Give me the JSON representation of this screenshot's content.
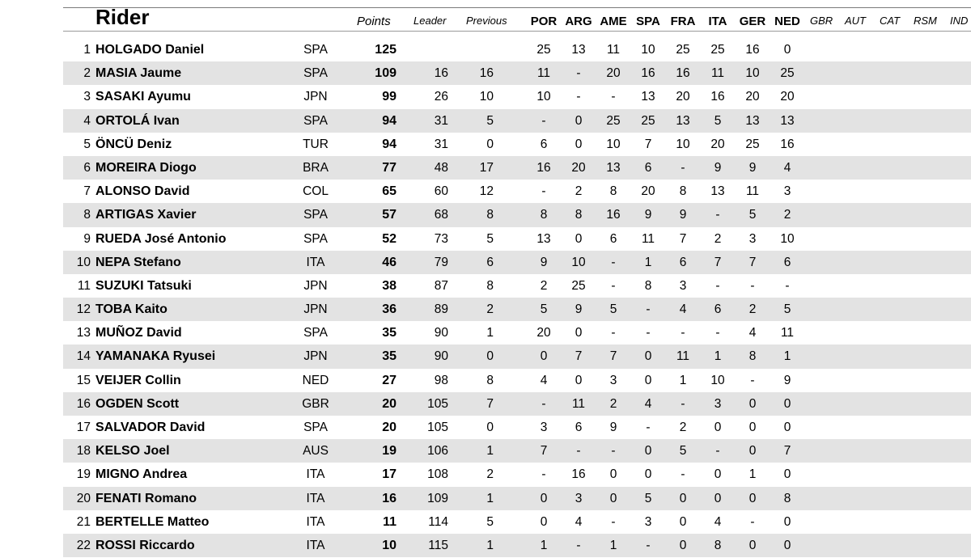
{
  "header": {
    "rider": "Rider",
    "points": "Points",
    "leader": "Leader",
    "previous": "Previous",
    "races": [
      "POR",
      "ARG",
      "AME",
      "SPA",
      "FRA",
      "ITA",
      "GER",
      "NED"
    ],
    "future_races": [
      "GBR",
      "AUT",
      "CAT",
      "RSM",
      "IND"
    ]
  },
  "rows": [
    {
      "pos": "1",
      "name": "HOLGADO Daniel",
      "nat": "SPA",
      "points": "125",
      "leader": "",
      "previous": "",
      "results": [
        "25",
        "13",
        "11",
        "10",
        "25",
        "25",
        "16",
        "0"
      ]
    },
    {
      "pos": "2",
      "name": "MASIA Jaume",
      "nat": "SPA",
      "points": "109",
      "leader": "16",
      "previous": "16",
      "results": [
        "11",
        "-",
        "20",
        "16",
        "16",
        "11",
        "10",
        "25"
      ]
    },
    {
      "pos": "3",
      "name": "SASAKI Ayumu",
      "nat": "JPN",
      "points": "99",
      "leader": "26",
      "previous": "10",
      "results": [
        "10",
        "-",
        "-",
        "13",
        "20",
        "16",
        "20",
        "20"
      ]
    },
    {
      "pos": "4",
      "name": "ORTOLÁ Ivan",
      "nat": "SPA",
      "points": "94",
      "leader": "31",
      "previous": "5",
      "results": [
        "-",
        "0",
        "25",
        "25",
        "13",
        "5",
        "13",
        "13"
      ]
    },
    {
      "pos": "5",
      "name": "ÖNCÜ Deniz",
      "nat": "TUR",
      "points": "94",
      "leader": "31",
      "previous": "0",
      "results": [
        "6",
        "0",
        "10",
        "7",
        "10",
        "20",
        "25",
        "16"
      ]
    },
    {
      "pos": "6",
      "name": "MOREIRA Diogo",
      "nat": "BRA",
      "points": "77",
      "leader": "48",
      "previous": "17",
      "results": [
        "16",
        "20",
        "13",
        "6",
        "-",
        "9",
        "9",
        "4"
      ]
    },
    {
      "pos": "7",
      "name": "ALONSO David",
      "nat": "COL",
      "points": "65",
      "leader": "60",
      "previous": "12",
      "results": [
        "-",
        "2",
        "8",
        "20",
        "8",
        "13",
        "11",
        "3"
      ]
    },
    {
      "pos": "8",
      "name": "ARTIGAS Xavier",
      "nat": "SPA",
      "points": "57",
      "leader": "68",
      "previous": "8",
      "results": [
        "8",
        "8",
        "16",
        "9",
        "9",
        "-",
        "5",
        "2"
      ]
    },
    {
      "pos": "9",
      "name": "RUEDA José Antonio",
      "nat": "SPA",
      "points": "52",
      "leader": "73",
      "previous": "5",
      "results": [
        "13",
        "0",
        "6",
        "11",
        "7",
        "2",
        "3",
        "10"
      ]
    },
    {
      "pos": "10",
      "name": "NEPA Stefano",
      "nat": "ITA",
      "points": "46",
      "leader": "79",
      "previous": "6",
      "results": [
        "9",
        "10",
        "-",
        "1",
        "6",
        "7",
        "7",
        "6"
      ]
    },
    {
      "pos": "11",
      "name": "SUZUKI Tatsuki",
      "nat": "JPN",
      "points": "38",
      "leader": "87",
      "previous": "8",
      "results": [
        "2",
        "25",
        "-",
        "8",
        "3",
        "-",
        "-",
        "-"
      ]
    },
    {
      "pos": "12",
      "name": "TOBA Kaito",
      "nat": "JPN",
      "points": "36",
      "leader": "89",
      "previous": "2",
      "results": [
        "5",
        "9",
        "5",
        "-",
        "4",
        "6",
        "2",
        "5"
      ]
    },
    {
      "pos": "13",
      "name": "MUÑOZ David",
      "nat": "SPA",
      "points": "35",
      "leader": "90",
      "previous": "1",
      "results": [
        "20",
        "0",
        "-",
        "-",
        "-",
        "-",
        "4",
        "11"
      ]
    },
    {
      "pos": "14",
      "name": "YAMANAKA Ryusei",
      "nat": "JPN",
      "points": "35",
      "leader": "90",
      "previous": "0",
      "results": [
        "0",
        "7",
        "7",
        "0",
        "11",
        "1",
        "8",
        "1"
      ]
    },
    {
      "pos": "15",
      "name": "VEIJER Collin",
      "nat": "NED",
      "points": "27",
      "leader": "98",
      "previous": "8",
      "results": [
        "4",
        "0",
        "3",
        "0",
        "1",
        "10",
        "-",
        "9"
      ]
    },
    {
      "pos": "16",
      "name": "OGDEN Scott",
      "nat": "GBR",
      "points": "20",
      "leader": "105",
      "previous": "7",
      "results": [
        "-",
        "11",
        "2",
        "4",
        "-",
        "3",
        "0",
        "0"
      ]
    },
    {
      "pos": "17",
      "name": "SALVADOR David",
      "nat": "SPA",
      "points": "20",
      "leader": "105",
      "previous": "0",
      "results": [
        "3",
        "6",
        "9",
        "-",
        "2",
        "0",
        "0",
        "0"
      ]
    },
    {
      "pos": "18",
      "name": "KELSO Joel",
      "nat": "AUS",
      "points": "19",
      "leader": "106",
      "previous": "1",
      "results": [
        "7",
        "-",
        "-",
        "0",
        "5",
        "-",
        "0",
        "7"
      ]
    },
    {
      "pos": "19",
      "name": "MIGNO Andrea",
      "nat": "ITA",
      "points": "17",
      "leader": "108",
      "previous": "2",
      "results": [
        "-",
        "16",
        "0",
        "0",
        "-",
        "0",
        "1",
        "0"
      ]
    },
    {
      "pos": "20",
      "name": "FENATI Romano",
      "nat": "ITA",
      "points": "16",
      "leader": "109",
      "previous": "1",
      "results": [
        "0",
        "3",
        "0",
        "5",
        "0",
        "0",
        "0",
        "8"
      ]
    },
    {
      "pos": "21",
      "name": "BERTELLE Matteo",
      "nat": "ITA",
      "points": "11",
      "leader": "114",
      "previous": "5",
      "results": [
        "0",
        "4",
        "-",
        "3",
        "0",
        "4",
        "-",
        "0"
      ]
    },
    {
      "pos": "22",
      "name": "ROSSI Riccardo",
      "nat": "ITA",
      "points": "10",
      "leader": "115",
      "previous": "1",
      "results": [
        "1",
        "-",
        "1",
        "-",
        "0",
        "8",
        "0",
        "0"
      ]
    }
  ]
}
